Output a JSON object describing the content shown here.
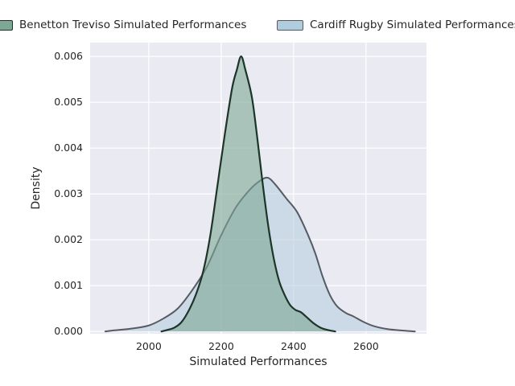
{
  "chart_data": {
    "type": "area",
    "subtype": "kde-density",
    "title": "",
    "xlabel": "Simulated Performances",
    "ylabel": "Density",
    "xlim": [
      1838,
      2767
    ],
    "ylim": [
      -5e-05,
      0.0063
    ],
    "x_ticks": [
      2000,
      2200,
      2400,
      2600
    ],
    "y_ticks": [
      "0.000",
      "0.001",
      "0.002",
      "0.003",
      "0.004",
      "0.005",
      "0.006"
    ],
    "y_tick_values": [
      0,
      0.001,
      0.002,
      0.003,
      0.004,
      0.005,
      0.006
    ],
    "grid": true,
    "legend_position": "top",
    "plot_background": "#eaeaf2",
    "grid_color": "#ffffff",
    "text_color": "#262626",
    "series": [
      {
        "name": "Benetton Treviso Simulated Performances",
        "line_color": "#1c3527",
        "fill_color": "rgba(125,166,148,0.6)",
        "swatch_fill": "#7ea795",
        "line_width": 2.2,
        "zorder": 2,
        "peak": {
          "x": 2255,
          "density": 0.006
        },
        "points": [
          [
            2035,
            0
          ],
          [
            2050,
            3e-05
          ],
          [
            2070,
            8e-05
          ],
          [
            2090,
            0.0002
          ],
          [
            2110,
            0.00045
          ],
          [
            2130,
            0.0008
          ],
          [
            2150,
            0.0013
          ],
          [
            2170,
            0.0021
          ],
          [
            2190,
            0.0032
          ],
          [
            2210,
            0.0043
          ],
          [
            2230,
            0.0053
          ],
          [
            2243,
            0.0057
          ],
          [
            2255,
            0.006
          ],
          [
            2267,
            0.0057
          ],
          [
            2285,
            0.0051
          ],
          [
            2300,
            0.0042
          ],
          [
            2315,
            0.0032
          ],
          [
            2330,
            0.0023
          ],
          [
            2345,
            0.0016
          ],
          [
            2360,
            0.0011
          ],
          [
            2375,
            0.0008
          ],
          [
            2390,
            0.00058
          ],
          [
            2405,
            0.00047
          ],
          [
            2420,
            0.00042
          ],
          [
            2435,
            0.00032
          ],
          [
            2455,
            0.00018
          ],
          [
            2475,
            8e-05
          ],
          [
            2495,
            3e-05
          ],
          [
            2515,
            0
          ]
        ]
      },
      {
        "name": "Cardiff Rugby Simulated Performances",
        "line_color": "#565b63",
        "fill_color": "rgba(178,203,221,0.55)",
        "swatch_fill": "#b2cbdd",
        "line_width": 2.0,
        "zorder": 1,
        "peak": {
          "x": 2320,
          "density": 0.00335
        },
        "points": [
          [
            1880,
            0
          ],
          [
            1900,
            2e-05
          ],
          [
            1950,
            6e-05
          ],
          [
            2000,
            0.00013
          ],
          [
            2040,
            0.00028
          ],
          [
            2080,
            0.0005
          ],
          [
            2120,
            0.0009
          ],
          [
            2160,
            0.0014
          ],
          [
            2200,
            0.0021
          ],
          [
            2240,
            0.0027
          ],
          [
            2280,
            0.0031
          ],
          [
            2310,
            0.0033
          ],
          [
            2330,
            0.00335
          ],
          [
            2350,
            0.0032
          ],
          [
            2380,
            0.0029
          ],
          [
            2410,
            0.0026
          ],
          [
            2440,
            0.0021
          ],
          [
            2460,
            0.0017
          ],
          [
            2480,
            0.0012
          ],
          [
            2500,
            0.0008
          ],
          [
            2520,
            0.00055
          ],
          [
            2545,
            0.0004
          ],
          [
            2565,
            0.00033
          ],
          [
            2590,
            0.00022
          ],
          [
            2620,
            0.00012
          ],
          [
            2660,
            5e-05
          ],
          [
            2700,
            2e-05
          ],
          [
            2735,
            0
          ]
        ]
      }
    ]
  }
}
